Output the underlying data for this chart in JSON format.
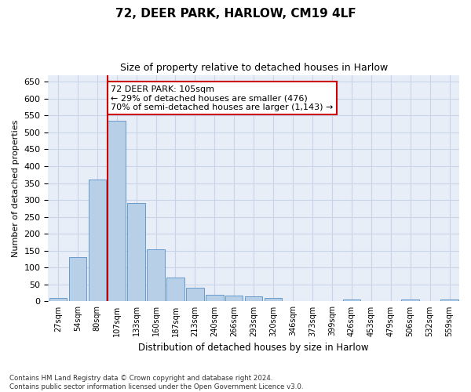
{
  "title_line1": "72, DEER PARK, HARLOW, CM19 4LF",
  "title_line2": "Size of property relative to detached houses in Harlow",
  "xlabel": "Distribution of detached houses by size in Harlow",
  "ylabel": "Number of detached properties",
  "footer": "Contains HM Land Registry data © Crown copyright and database right 2024.\nContains public sector information licensed under the Open Government Licence v3.0.",
  "categories": [
    "27sqm",
    "54sqm",
    "80sqm",
    "107sqm",
    "133sqm",
    "160sqm",
    "187sqm",
    "213sqm",
    "240sqm",
    "266sqm",
    "293sqm",
    "320sqm",
    "346sqm",
    "373sqm",
    "399sqm",
    "426sqm",
    "453sqm",
    "479sqm",
    "506sqm",
    "532sqm",
    "559sqm"
  ],
  "values": [
    10,
    130,
    360,
    535,
    290,
    155,
    70,
    40,
    20,
    18,
    15,
    10,
    0,
    0,
    0,
    5,
    0,
    0,
    5,
    0,
    5
  ],
  "bar_color": "#b8cfe8",
  "bar_edge_color": "#6699cc",
  "grid_color": "#c8d4e8",
  "background_color": "#e8eef8",
  "vline_color": "#cc0000",
  "vline_x_index": 3,
  "annotation_text": "72 DEER PARK: 105sqm\n← 29% of detached houses are smaller (476)\n70% of semi-detached houses are larger (1,143) →",
  "annotation_box_color": "#ffffff",
  "annotation_box_edge": "#cc0000",
  "ylim": [
    0,
    670
  ],
  "yticks": [
    0,
    50,
    100,
    150,
    200,
    250,
    300,
    350,
    400,
    450,
    500,
    550,
    600,
    650
  ]
}
